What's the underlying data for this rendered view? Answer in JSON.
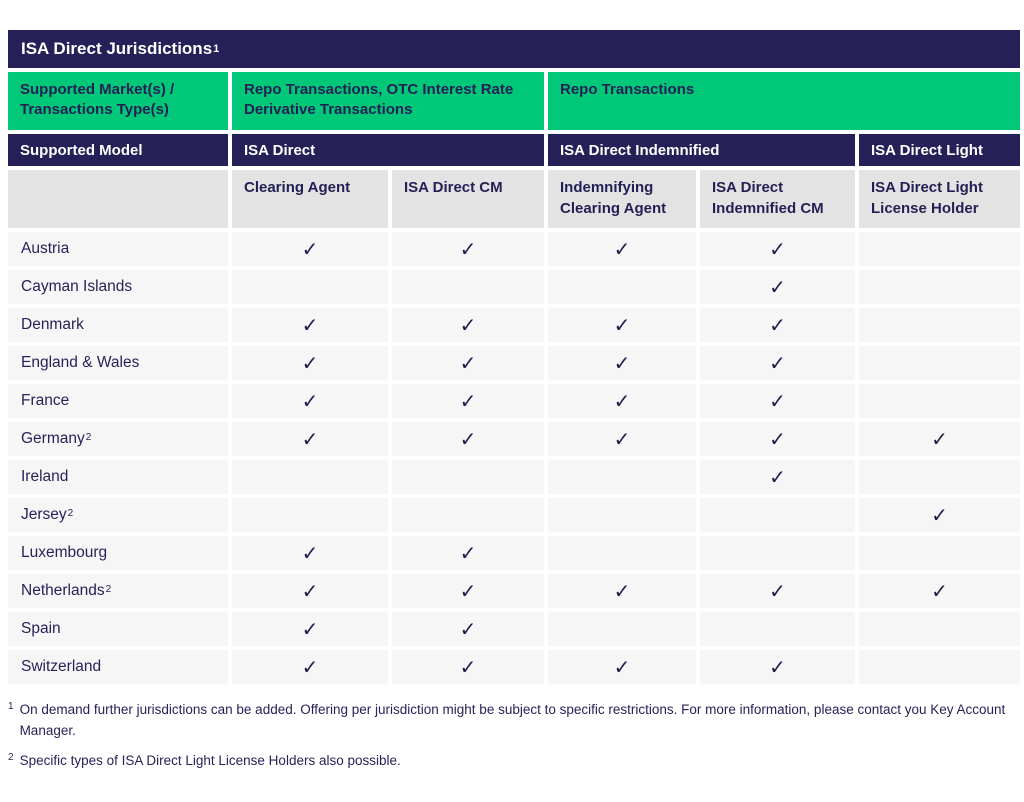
{
  "header": {
    "title": "ISA Direct Jurisdictions",
    "title_sup": "1"
  },
  "market_band": {
    "label": "Supported Market(s) /\nTransactions Type(s)",
    "group1": "Repo Transactions, OTC Interest Rate Derivative Transactions",
    "group2": "Repo Transactions"
  },
  "model_band": {
    "label": "Supported Model",
    "models": [
      "ISA Direct",
      "ISA Direct Indemnified",
      "ISA Direct Light"
    ]
  },
  "role_band": {
    "roles": [
      "Clearing Agent",
      "ISA Direct CM",
      "Indemnifying Clearing Agent",
      "ISA Direct Indemnified CM",
      "ISA Direct Light License Holder"
    ]
  },
  "table": {
    "check_glyph": "✓",
    "rows": [
      {
        "name": "Austria",
        "sup": "",
        "checks": [
          true,
          true,
          true,
          true,
          false
        ]
      },
      {
        "name": "Cayman Islands",
        "sup": "",
        "checks": [
          false,
          false,
          false,
          true,
          false
        ]
      },
      {
        "name": "Denmark",
        "sup": "",
        "checks": [
          true,
          true,
          true,
          true,
          false
        ]
      },
      {
        "name": "England & Wales",
        "sup": "",
        "checks": [
          true,
          true,
          true,
          true,
          false
        ]
      },
      {
        "name": "France",
        "sup": "",
        "checks": [
          true,
          true,
          true,
          true,
          false
        ]
      },
      {
        "name": "Germany",
        "sup": "2",
        "checks": [
          true,
          true,
          true,
          true,
          true
        ]
      },
      {
        "name": "Ireland",
        "sup": "",
        "checks": [
          false,
          false,
          false,
          true,
          false
        ]
      },
      {
        "name": "Jersey",
        "sup": "2",
        "checks": [
          false,
          false,
          false,
          false,
          true
        ]
      },
      {
        "name": "Luxembourg",
        "sup": "",
        "checks": [
          true,
          true,
          false,
          false,
          false
        ]
      },
      {
        "name": "Netherlands",
        "sup": "2",
        "checks": [
          true,
          true,
          true,
          true,
          true
        ]
      },
      {
        "name": "Spain",
        "sup": "",
        "checks": [
          true,
          true,
          false,
          false,
          false
        ]
      },
      {
        "name": "Switzerland",
        "sup": "",
        "checks": [
          true,
          true,
          true,
          true,
          false
        ]
      }
    ]
  },
  "footnotes": [
    {
      "sup": "1",
      "text": "On demand further jurisdictions can be added. Offering per jurisdiction might be subject to specific restrictions. For more information, please contact you Key Account Manager."
    },
    {
      "sup": "2",
      "text": "Specific types of ISA Direct Light License Holders also possible."
    }
  ],
  "colors": {
    "navy": "#252057",
    "green": "#00c878",
    "subheader_gray": "#e3e3e3",
    "row_gray": "#f6f6f6",
    "text_navy": "#2a2158",
    "check_navy": "#211b4e"
  }
}
